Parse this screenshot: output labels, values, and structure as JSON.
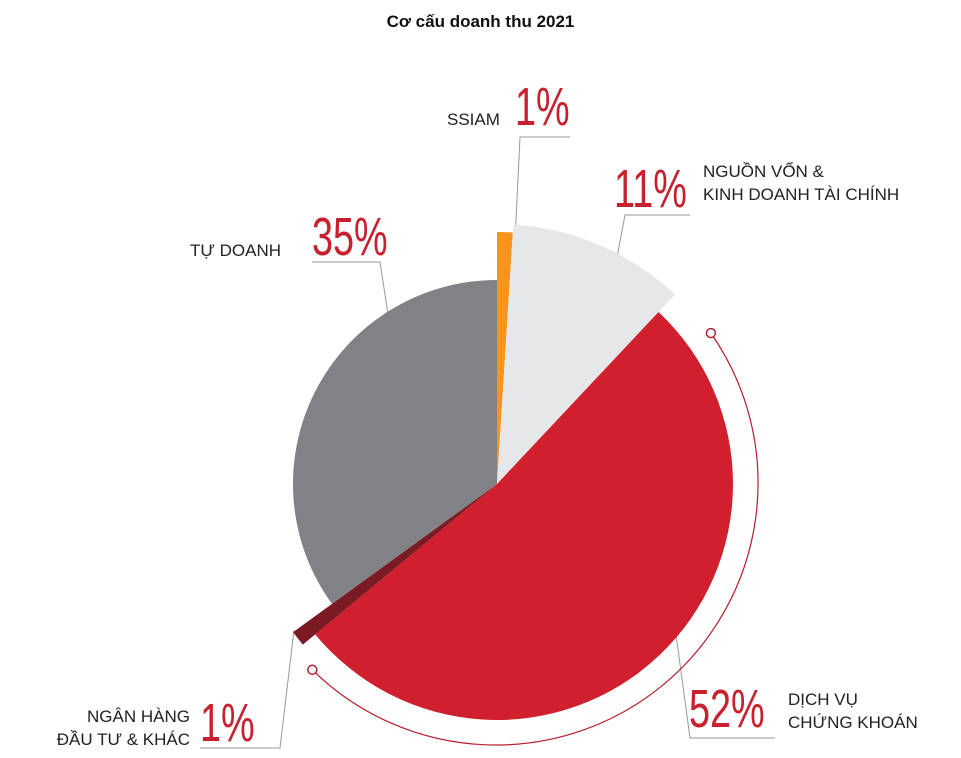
{
  "chart_data": {
    "type": "pie",
    "title": "Cơ cấu doanh thu 2021",
    "categories": [
      "SSIAM",
      "NGUỒN VỐN &\nKINH DOANH TÀI CHÍNH",
      "DỊCH VỤ\nCHỨNG KHOÁN",
      "NGÂN HÀNG\nĐẦU TƯ & KHÁC",
      "TỰ DOANH"
    ],
    "values": [
      1,
      11,
      52,
      1,
      35
    ],
    "value_labels": [
      "1%",
      "11%",
      "52%",
      "1%",
      "35%"
    ],
    "colors": [
      "#f7941d",
      "#e6e7e8",
      "#d0202e",
      "#7a1a22",
      "#808285"
    ]
  }
}
